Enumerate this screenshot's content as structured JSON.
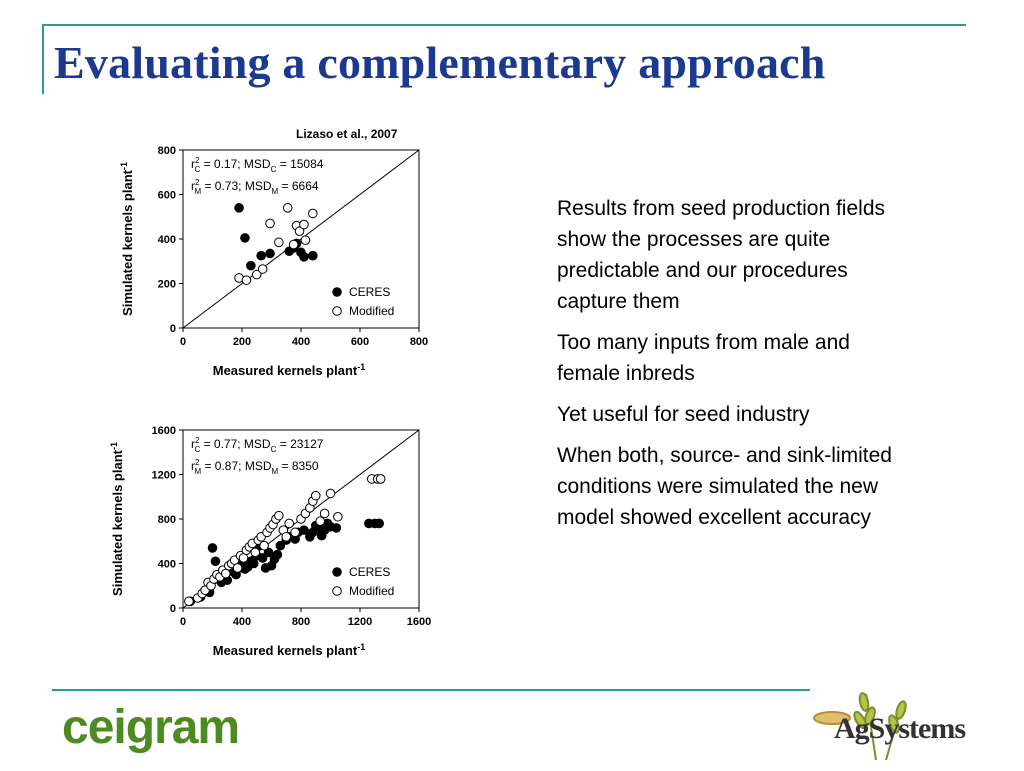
{
  "slide": {
    "title": "Evaluating a complementary approach",
    "source": "Lizaso et al., 2007"
  },
  "bullets": [
    "Results from seed production fields show the processes are quite predictable and our procedures capture them",
    "Too many inputs from male and female inbreds",
    "Yet useful for seed industry",
    "When both, source- and sink-limited conditions were simulated the new model showed excellent accuracy"
  ],
  "logos": {
    "left": "ceigram",
    "right": "AgSystems"
  },
  "colors": {
    "title": "#1b3a8f",
    "rule": "#2a9a9a",
    "ceigram": "#4c8a22"
  },
  "chart_data": [
    {
      "type": "scatter",
      "title": "",
      "xlabel": "Measured kernels plant",
      "xlabel_sup": "-1",
      "ylabel": "Simulated kernels plant",
      "ylabel_sup": "-1",
      "xlim": [
        0,
        800
      ],
      "ylim": [
        0,
        800
      ],
      "xticks": [
        0,
        200,
        400,
        600,
        800
      ],
      "yticks": [
        0,
        200,
        400,
        600,
        800
      ],
      "one_to_one_line": true,
      "legend_position": "bottom-right",
      "annotations": [
        {
          "r2": "r",
          "sub": "C",
          "text1": " = 0.17; MSD",
          "text2": " = 15084"
        },
        {
          "r2": "r",
          "sub": "M",
          "text1": " = 0.73; MSD",
          "text2": " = 6664"
        }
      ],
      "series": [
        {
          "name": "CERES",
          "marker": "filled",
          "x": [
            190,
            210,
            230,
            265,
            295,
            360,
            375,
            385,
            400,
            410,
            440
          ],
          "y": [
            540,
            405,
            280,
            325,
            335,
            345,
            360,
            380,
            340,
            320,
            325
          ]
        },
        {
          "name": "Modified",
          "marker": "open",
          "x": [
            190,
            215,
            250,
            270,
            295,
            325,
            355,
            375,
            385,
            395,
            410,
            415,
            440
          ],
          "y": [
            225,
            215,
            240,
            265,
            470,
            385,
            540,
            375,
            460,
            435,
            465,
            395,
            515
          ]
        }
      ]
    },
    {
      "type": "scatter",
      "title": "",
      "xlabel": "Measured kernels plant",
      "xlabel_sup": "-1",
      "ylabel": "Simulated kernels plant",
      "ylabel_sup": "-1",
      "xlim": [
        0,
        1600
      ],
      "ylim": [
        0,
        1600
      ],
      "xticks": [
        0,
        400,
        800,
        1200,
        1600
      ],
      "yticks": [
        0,
        400,
        800,
        1200,
        1600
      ],
      "one_to_one_line": true,
      "legend_position": "bottom-right",
      "annotations": [
        {
          "r2": "r",
          "sub": "C",
          "text1": " = 0.77; MSD",
          "text2": " = 23127"
        },
        {
          "r2": "r",
          "sub": "M",
          "text1": " = 0.87; MSD",
          "text2": " = 8350"
        }
      ],
      "series": [
        {
          "name": "CERES",
          "marker": "filled",
          "x": [
            50,
            120,
            180,
            200,
            220,
            260,
            300,
            330,
            360,
            380,
            400,
            420,
            440,
            460,
            480,
            500,
            520,
            540,
            560,
            580,
            600,
            620,
            640,
            660,
            700,
            720,
            760,
            780,
            820,
            860,
            880,
            900,
            920,
            940,
            960,
            980,
            1000,
            1040,
            1260,
            1300,
            1330
          ],
          "y": [
            60,
            100,
            140,
            540,
            420,
            230,
            250,
            330,
            300,
            360,
            390,
            350,
            370,
            420,
            400,
            470,
            560,
            450,
            360,
            500,
            380,
            440,
            480,
            560,
            610,
            640,
            620,
            680,
            700,
            640,
            680,
            740,
            720,
            650,
            700,
            760,
            730,
            720,
            760,
            760,
            760
          ]
        },
        {
          "name": "Modified",
          "marker": "open",
          "x": [
            40,
            100,
            130,
            150,
            170,
            190,
            210,
            230,
            250,
            270,
            290,
            310,
            330,
            350,
            370,
            390,
            410,
            430,
            450,
            470,
            490,
            510,
            530,
            550,
            570,
            590,
            610,
            630,
            650,
            680,
            700,
            720,
            760,
            800,
            830,
            860,
            880,
            900,
            930,
            960,
            1000,
            1050,
            1280,
            1320,
            1340
          ],
          "y": [
            60,
            90,
            130,
            160,
            230,
            200,
            260,
            300,
            280,
            340,
            310,
            380,
            400,
            430,
            360,
            470,
            450,
            520,
            550,
            580,
            500,
            610,
            640,
            560,
            680,
            720,
            750,
            800,
            830,
            700,
            640,
            760,
            680,
            800,
            850,
            900,
            960,
            1010,
            780,
            850,
            1030,
            820,
            1160,
            1160,
            1160
          ]
        }
      ]
    }
  ]
}
